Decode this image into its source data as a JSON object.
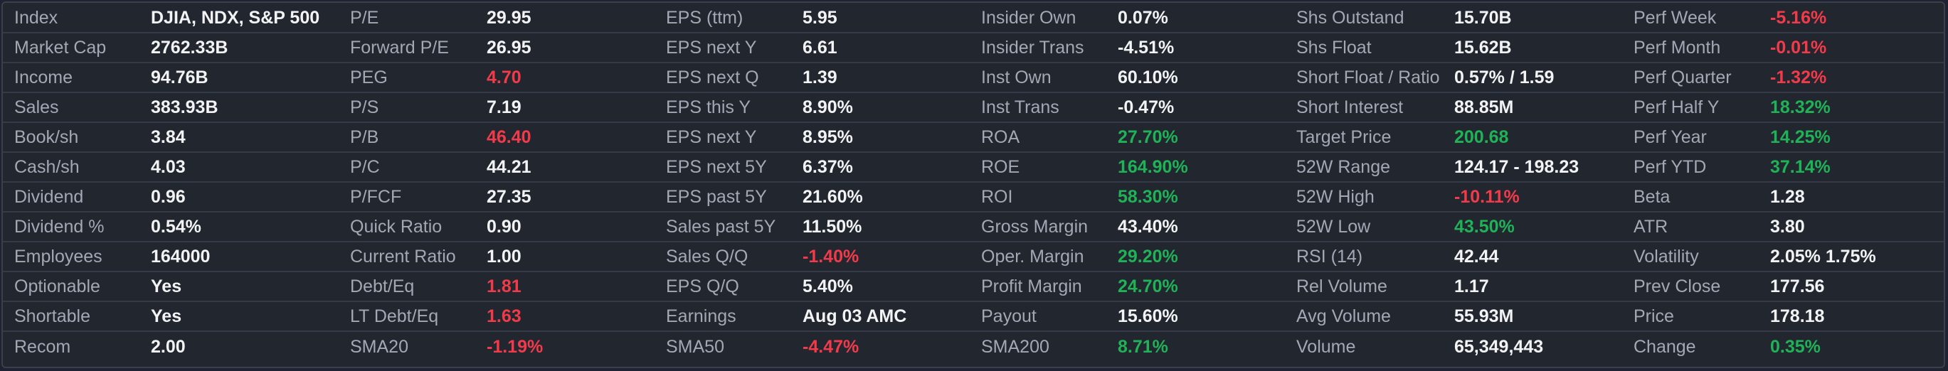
{
  "colors": {
    "background": "#22262f",
    "border": "#3a3f4e",
    "divider": "#363a48",
    "label": "#a3a8b5",
    "value": "#f2f3f5",
    "negative": "#f23b4a",
    "positive": "#1fb257"
  },
  "rows": [
    {
      "cells": [
        {
          "label": "Index",
          "value": "DJIA, NDX, S&P 500",
          "tone": "neutral"
        },
        {
          "label": "P/E",
          "value": "29.95",
          "tone": "neutral"
        },
        {
          "label": "EPS (ttm)",
          "value": "5.95",
          "tone": "neutral"
        },
        {
          "label": "Insider Own",
          "value": "0.07%",
          "tone": "neutral"
        },
        {
          "label": "Shs Outstand",
          "value": "15.70B",
          "tone": "neutral"
        },
        {
          "label": "Perf Week",
          "value": "-5.16%",
          "tone": "negative"
        }
      ]
    },
    {
      "cells": [
        {
          "label": "Market Cap",
          "value": "2762.33B",
          "tone": "neutral"
        },
        {
          "label": "Forward P/E",
          "value": "26.95",
          "tone": "neutral"
        },
        {
          "label": "EPS next Y",
          "value": "6.61",
          "tone": "neutral"
        },
        {
          "label": "Insider Trans",
          "value": "-4.51%",
          "tone": "neutral"
        },
        {
          "label": "Shs Float",
          "value": "15.62B",
          "tone": "neutral"
        },
        {
          "label": "Perf Month",
          "value": "-0.01%",
          "tone": "negative"
        }
      ]
    },
    {
      "cells": [
        {
          "label": "Income",
          "value": "94.76B",
          "tone": "neutral"
        },
        {
          "label": "PEG",
          "value": "4.70",
          "tone": "negative"
        },
        {
          "label": "EPS next Q",
          "value": "1.39",
          "tone": "neutral"
        },
        {
          "label": "Inst Own",
          "value": "60.10%",
          "tone": "neutral"
        },
        {
          "label": "Short Float / Ratio",
          "value": "0.57% / 1.59",
          "tone": "neutral"
        },
        {
          "label": "Perf Quarter",
          "value": "-1.32%",
          "tone": "negative"
        }
      ]
    },
    {
      "cells": [
        {
          "label": "Sales",
          "value": "383.93B",
          "tone": "neutral"
        },
        {
          "label": "P/S",
          "value": "7.19",
          "tone": "neutral"
        },
        {
          "label": "EPS this Y",
          "value": "8.90%",
          "tone": "neutral"
        },
        {
          "label": "Inst Trans",
          "value": "-0.47%",
          "tone": "neutral"
        },
        {
          "label": "Short Interest",
          "value": "88.85M",
          "tone": "neutral"
        },
        {
          "label": "Perf Half Y",
          "value": "18.32%",
          "tone": "positive"
        }
      ]
    },
    {
      "cells": [
        {
          "label": "Book/sh",
          "value": "3.84",
          "tone": "neutral"
        },
        {
          "label": "P/B",
          "value": "46.40",
          "tone": "negative"
        },
        {
          "label": "EPS next Y",
          "value": "8.95%",
          "tone": "neutral"
        },
        {
          "label": "ROA",
          "value": "27.70%",
          "tone": "positive"
        },
        {
          "label": "Target Price",
          "value": "200.68",
          "tone": "positive"
        },
        {
          "label": "Perf Year",
          "value": "14.25%",
          "tone": "positive"
        }
      ]
    },
    {
      "cells": [
        {
          "label": "Cash/sh",
          "value": "4.03",
          "tone": "neutral"
        },
        {
          "label": "P/C",
          "value": "44.21",
          "tone": "neutral"
        },
        {
          "label": "EPS next 5Y",
          "value": "6.37%",
          "tone": "neutral"
        },
        {
          "label": "ROE",
          "value": "164.90%",
          "tone": "positive"
        },
        {
          "label": "52W Range",
          "value": "124.17 - 198.23",
          "tone": "neutral"
        },
        {
          "label": "Perf YTD",
          "value": "37.14%",
          "tone": "positive"
        }
      ]
    },
    {
      "cells": [
        {
          "label": "Dividend",
          "value": "0.96",
          "tone": "neutral"
        },
        {
          "label": "P/FCF",
          "value": "27.35",
          "tone": "neutral"
        },
        {
          "label": "EPS past 5Y",
          "value": "21.60%",
          "tone": "neutral"
        },
        {
          "label": "ROI",
          "value": "58.30%",
          "tone": "positive"
        },
        {
          "label": "52W High",
          "value": "-10.11%",
          "tone": "negative"
        },
        {
          "label": "Beta",
          "value": "1.28",
          "tone": "neutral"
        }
      ]
    },
    {
      "cells": [
        {
          "label": "Dividend %",
          "value": "0.54%",
          "tone": "neutral"
        },
        {
          "label": "Quick Ratio",
          "value": "0.90",
          "tone": "neutral"
        },
        {
          "label": "Sales past 5Y",
          "value": "11.50%",
          "tone": "neutral"
        },
        {
          "label": "Gross Margin",
          "value": "43.40%",
          "tone": "neutral"
        },
        {
          "label": "52W Low",
          "value": "43.50%",
          "tone": "positive"
        },
        {
          "label": "ATR",
          "value": "3.80",
          "tone": "neutral"
        }
      ]
    },
    {
      "cells": [
        {
          "label": "Employees",
          "value": "164000",
          "tone": "neutral"
        },
        {
          "label": "Current Ratio",
          "value": "1.00",
          "tone": "neutral"
        },
        {
          "label": "Sales Q/Q",
          "value": "-1.40%",
          "tone": "negative"
        },
        {
          "label": "Oper. Margin",
          "value": "29.20%",
          "tone": "positive"
        },
        {
          "label": "RSI (14)",
          "value": "42.44",
          "tone": "neutral"
        },
        {
          "label": "Volatility",
          "value": "2.05% 1.75%",
          "tone": "neutral"
        }
      ]
    },
    {
      "cells": [
        {
          "label": "Optionable",
          "value": "Yes",
          "tone": "neutral"
        },
        {
          "label": "Debt/Eq",
          "value": "1.81",
          "tone": "negative"
        },
        {
          "label": "EPS Q/Q",
          "value": "5.40%",
          "tone": "neutral"
        },
        {
          "label": "Profit Margin",
          "value": "24.70%",
          "tone": "positive"
        },
        {
          "label": "Rel Volume",
          "value": "1.17",
          "tone": "neutral"
        },
        {
          "label": "Prev Close",
          "value": "177.56",
          "tone": "neutral"
        }
      ]
    },
    {
      "cells": [
        {
          "label": "Shortable",
          "value": "Yes",
          "tone": "neutral"
        },
        {
          "label": "LT Debt/Eq",
          "value": "1.63",
          "tone": "negative"
        },
        {
          "label": "Earnings",
          "value": "Aug 03 AMC",
          "tone": "neutral"
        },
        {
          "label": "Payout",
          "value": "15.60%",
          "tone": "neutral"
        },
        {
          "label": "Avg Volume",
          "value": "55.93M",
          "tone": "neutral"
        },
        {
          "label": "Price",
          "value": "178.18",
          "tone": "neutral"
        }
      ]
    },
    {
      "cells": [
        {
          "label": "Recom",
          "value": "2.00",
          "tone": "neutral"
        },
        {
          "label": "SMA20",
          "value": "-1.19%",
          "tone": "negative"
        },
        {
          "label": "SMA50",
          "value": "-4.47%",
          "tone": "negative"
        },
        {
          "label": "SMA200",
          "value": "8.71%",
          "tone": "positive"
        },
        {
          "label": "Volume",
          "value": "65,349,443",
          "tone": "neutral"
        },
        {
          "label": "Change",
          "value": "0.35%",
          "tone": "positive"
        }
      ]
    }
  ]
}
